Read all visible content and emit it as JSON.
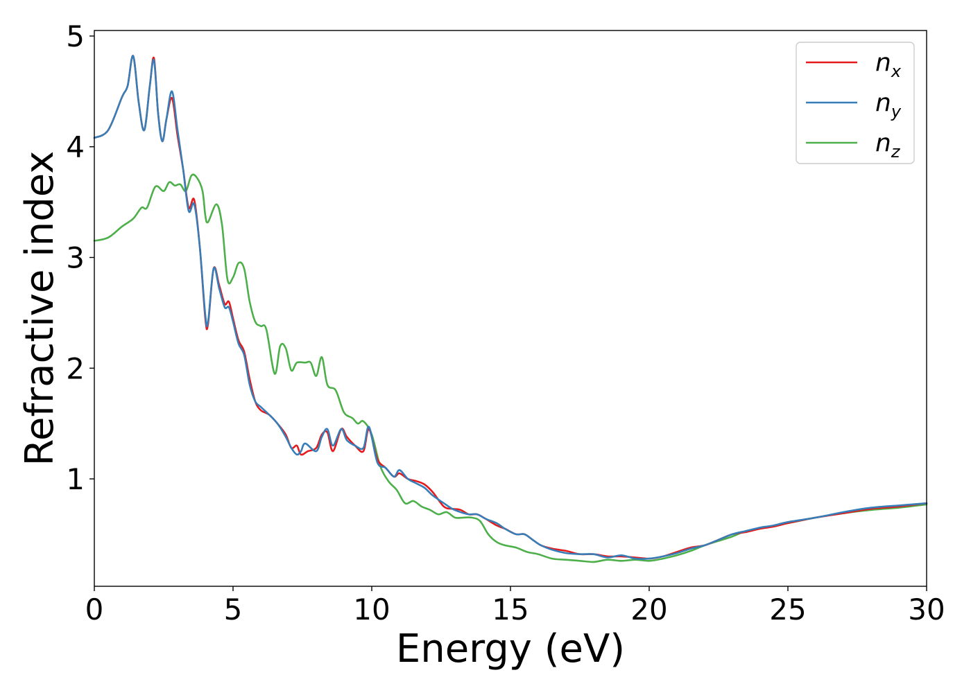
{
  "chart_data": {
    "type": "line",
    "xlabel": "Energy (eV)",
    "ylabel": "Refractive index",
    "xlim": [
      0,
      30
    ],
    "ylim": [
      0.03,
      5.05
    ],
    "xticks": [
      0,
      5,
      10,
      15,
      20,
      25,
      30
    ],
    "yticks": [
      1,
      2,
      3,
      4,
      5
    ],
    "grid": false,
    "legend_position": "top-right",
    "series": [
      {
        "key": "nx",
        "name": "n",
        "subscript": "x",
        "color": "#e41a1c",
        "points": [
          [
            0,
            4.08
          ],
          [
            0.5,
            4.15
          ],
          [
            1.0,
            4.45
          ],
          [
            1.2,
            4.55
          ],
          [
            1.4,
            4.82
          ],
          [
            1.6,
            4.4
          ],
          [
            1.8,
            4.15
          ],
          [
            2.0,
            4.55
          ],
          [
            2.15,
            4.8
          ],
          [
            2.3,
            4.3
          ],
          [
            2.45,
            4.05
          ],
          [
            2.6,
            4.25
          ],
          [
            2.8,
            4.44
          ],
          [
            3.0,
            4.1
          ],
          [
            3.2,
            3.8
          ],
          [
            3.4,
            3.45
          ],
          [
            3.6,
            3.52
          ],
          [
            3.8,
            3.1
          ],
          [
            4.0,
            2.45
          ],
          [
            4.1,
            2.4
          ],
          [
            4.3,
            2.9
          ],
          [
            4.5,
            2.75
          ],
          [
            4.7,
            2.58
          ],
          [
            4.85,
            2.6
          ],
          [
            5.0,
            2.45
          ],
          [
            5.2,
            2.25
          ],
          [
            5.4,
            2.15
          ],
          [
            5.6,
            1.9
          ],
          [
            5.8,
            1.7
          ],
          [
            6.0,
            1.62
          ],
          [
            6.3,
            1.58
          ],
          [
            6.6,
            1.5
          ],
          [
            6.9,
            1.4
          ],
          [
            7.1,
            1.28
          ],
          [
            7.3,
            1.3
          ],
          [
            7.45,
            1.22
          ],
          [
            7.7,
            1.25
          ],
          [
            8.0,
            1.28
          ],
          [
            8.2,
            1.4
          ],
          [
            8.4,
            1.42
          ],
          [
            8.6,
            1.25
          ],
          [
            8.9,
            1.45
          ],
          [
            9.1,
            1.38
          ],
          [
            9.4,
            1.3
          ],
          [
            9.7,
            1.25
          ],
          [
            9.9,
            1.45
          ],
          [
            10.2,
            1.18
          ],
          [
            10.5,
            1.1
          ],
          [
            10.8,
            1.02
          ],
          [
            11.0,
            1.05
          ],
          [
            11.3,
            1.0
          ],
          [
            11.6,
            0.98
          ],
          [
            11.9,
            0.95
          ],
          [
            12.2,
            0.88
          ],
          [
            12.6,
            0.75
          ],
          [
            12.9,
            0.73
          ],
          [
            13.2,
            0.72
          ],
          [
            13.5,
            0.68
          ],
          [
            13.8,
            0.68
          ],
          [
            14.1,
            0.64
          ],
          [
            14.5,
            0.58
          ],
          [
            14.8,
            0.55
          ],
          [
            15.2,
            0.5
          ],
          [
            15.5,
            0.5
          ],
          [
            15.8,
            0.45
          ],
          [
            16.1,
            0.4
          ],
          [
            16.5,
            0.37
          ],
          [
            17.0,
            0.35
          ],
          [
            17.5,
            0.32
          ],
          [
            18.0,
            0.32
          ],
          [
            18.5,
            0.3
          ],
          [
            19.0,
            0.3
          ],
          [
            19.5,
            0.29
          ],
          [
            20.0,
            0.28
          ],
          [
            20.5,
            0.3
          ],
          [
            21.0,
            0.34
          ],
          [
            21.5,
            0.38
          ],
          [
            22.0,
            0.4
          ],
          [
            22.5,
            0.45
          ],
          [
            23.0,
            0.5
          ],
          [
            23.5,
            0.52
          ],
          [
            24.0,
            0.55
          ],
          [
            24.5,
            0.57
          ],
          [
            25.0,
            0.6
          ],
          [
            26.0,
            0.65
          ],
          [
            27.0,
            0.69
          ],
          [
            28.0,
            0.73
          ],
          [
            29.0,
            0.75
          ],
          [
            30.0,
            0.78
          ]
        ]
      },
      {
        "key": "ny",
        "name": "n",
        "subscript": "y",
        "color": "#377eb8",
        "points": [
          [
            0,
            4.08
          ],
          [
            0.5,
            4.15
          ],
          [
            1.0,
            4.45
          ],
          [
            1.2,
            4.55
          ],
          [
            1.4,
            4.82
          ],
          [
            1.6,
            4.4
          ],
          [
            1.8,
            4.15
          ],
          [
            2.0,
            4.55
          ],
          [
            2.15,
            4.78
          ],
          [
            2.3,
            4.3
          ],
          [
            2.45,
            4.05
          ],
          [
            2.6,
            4.25
          ],
          [
            2.8,
            4.5
          ],
          [
            3.0,
            4.15
          ],
          [
            3.2,
            3.8
          ],
          [
            3.4,
            3.42
          ],
          [
            3.6,
            3.48
          ],
          [
            3.8,
            3.1
          ],
          [
            4.0,
            2.48
          ],
          [
            4.1,
            2.42
          ],
          [
            4.3,
            2.9
          ],
          [
            4.5,
            2.72
          ],
          [
            4.7,
            2.55
          ],
          [
            4.85,
            2.55
          ],
          [
            5.0,
            2.42
          ],
          [
            5.2,
            2.22
          ],
          [
            5.4,
            2.12
          ],
          [
            5.6,
            1.85
          ],
          [
            5.8,
            1.7
          ],
          [
            6.0,
            1.65
          ],
          [
            6.3,
            1.58
          ],
          [
            6.6,
            1.5
          ],
          [
            6.9,
            1.38
          ],
          [
            7.1,
            1.28
          ],
          [
            7.3,
            1.22
          ],
          [
            7.45,
            1.25
          ],
          [
            7.6,
            1.32
          ],
          [
            8.0,
            1.25
          ],
          [
            8.2,
            1.38
          ],
          [
            8.4,
            1.45
          ],
          [
            8.6,
            1.3
          ],
          [
            8.9,
            1.45
          ],
          [
            9.1,
            1.35
          ],
          [
            9.4,
            1.3
          ],
          [
            9.7,
            1.28
          ],
          [
            9.9,
            1.47
          ],
          [
            10.2,
            1.15
          ],
          [
            10.5,
            1.1
          ],
          [
            10.8,
            1.02
          ],
          [
            11.0,
            1.08
          ],
          [
            11.3,
            1.0
          ],
          [
            11.6,
            0.96
          ],
          [
            11.9,
            0.92
          ],
          [
            12.2,
            0.85
          ],
          [
            12.6,
            0.78
          ],
          [
            12.9,
            0.73
          ],
          [
            13.2,
            0.7
          ],
          [
            13.5,
            0.68
          ],
          [
            13.8,
            0.68
          ],
          [
            14.1,
            0.64
          ],
          [
            14.5,
            0.6
          ],
          [
            14.8,
            0.55
          ],
          [
            15.2,
            0.5
          ],
          [
            15.5,
            0.5
          ],
          [
            15.8,
            0.45
          ],
          [
            16.1,
            0.4
          ],
          [
            16.5,
            0.36
          ],
          [
            17.0,
            0.33
          ],
          [
            17.5,
            0.32
          ],
          [
            18.0,
            0.32
          ],
          [
            18.5,
            0.29
          ],
          [
            19.0,
            0.31
          ],
          [
            19.5,
            0.28
          ],
          [
            20.0,
            0.28
          ],
          [
            20.5,
            0.3
          ],
          [
            21.0,
            0.33
          ],
          [
            21.5,
            0.37
          ],
          [
            22.0,
            0.4
          ],
          [
            22.5,
            0.45
          ],
          [
            23.0,
            0.5
          ],
          [
            23.5,
            0.53
          ],
          [
            24.0,
            0.56
          ],
          [
            24.5,
            0.58
          ],
          [
            25.0,
            0.61
          ],
          [
            26.0,
            0.65
          ],
          [
            27.0,
            0.7
          ],
          [
            28.0,
            0.74
          ],
          [
            29.0,
            0.76
          ],
          [
            30.0,
            0.78
          ]
        ]
      },
      {
        "key": "nz",
        "name": "n",
        "subscript": "z",
        "color": "#4daf4a",
        "points": [
          [
            0,
            3.15
          ],
          [
            0.5,
            3.18
          ],
          [
            1.0,
            3.28
          ],
          [
            1.4,
            3.35
          ],
          [
            1.7,
            3.45
          ],
          [
            1.9,
            3.45
          ],
          [
            2.2,
            3.64
          ],
          [
            2.5,
            3.6
          ],
          [
            2.7,
            3.68
          ],
          [
            2.9,
            3.65
          ],
          [
            3.1,
            3.66
          ],
          [
            3.3,
            3.6
          ],
          [
            3.5,
            3.74
          ],
          [
            3.7,
            3.72
          ],
          [
            3.9,
            3.6
          ],
          [
            4.0,
            3.38
          ],
          [
            4.1,
            3.32
          ],
          [
            4.4,
            3.48
          ],
          [
            4.6,
            3.3
          ],
          [
            4.8,
            2.8
          ],
          [
            5.0,
            2.82
          ],
          [
            5.2,
            2.95
          ],
          [
            5.4,
            2.9
          ],
          [
            5.6,
            2.6
          ],
          [
            5.8,
            2.42
          ],
          [
            6.0,
            2.38
          ],
          [
            6.2,
            2.35
          ],
          [
            6.5,
            1.95
          ],
          [
            6.7,
            2.2
          ],
          [
            6.9,
            2.18
          ],
          [
            7.1,
            1.98
          ],
          [
            7.3,
            2.05
          ],
          [
            7.6,
            2.05
          ],
          [
            7.8,
            2.05
          ],
          [
            8.0,
            1.93
          ],
          [
            8.2,
            2.1
          ],
          [
            8.4,
            1.85
          ],
          [
            8.7,
            1.8
          ],
          [
            9.0,
            1.6
          ],
          [
            9.3,
            1.55
          ],
          [
            9.5,
            1.5
          ],
          [
            9.7,
            1.52
          ],
          [
            10.0,
            1.4
          ],
          [
            10.3,
            1.12
          ],
          [
            10.6,
            0.98
          ],
          [
            10.9,
            0.9
          ],
          [
            11.2,
            0.78
          ],
          [
            11.5,
            0.8
          ],
          [
            11.8,
            0.75
          ],
          [
            12.1,
            0.72
          ],
          [
            12.4,
            0.68
          ],
          [
            12.7,
            0.7
          ],
          [
            13.0,
            0.65
          ],
          [
            13.3,
            0.65
          ],
          [
            13.6,
            0.65
          ],
          [
            13.9,
            0.62
          ],
          [
            14.2,
            0.5
          ],
          [
            14.5,
            0.43
          ],
          [
            14.8,
            0.4
          ],
          [
            15.2,
            0.38
          ],
          [
            15.6,
            0.34
          ],
          [
            16.0,
            0.32
          ],
          [
            16.5,
            0.28
          ],
          [
            17.0,
            0.27
          ],
          [
            17.5,
            0.26
          ],
          [
            18.0,
            0.25
          ],
          [
            18.5,
            0.27
          ],
          [
            19.0,
            0.26
          ],
          [
            19.5,
            0.27
          ],
          [
            20.0,
            0.26
          ],
          [
            20.5,
            0.28
          ],
          [
            21.0,
            0.31
          ],
          [
            21.5,
            0.35
          ],
          [
            22.0,
            0.4
          ],
          [
            22.5,
            0.44
          ],
          [
            23.0,
            0.48
          ],
          [
            23.5,
            0.53
          ],
          [
            24.0,
            0.55
          ],
          [
            25.0,
            0.6
          ],
          [
            26.0,
            0.65
          ],
          [
            27.0,
            0.69
          ],
          [
            28.0,
            0.72
          ],
          [
            29.0,
            0.74
          ],
          [
            30.0,
            0.77
          ]
        ]
      }
    ]
  }
}
